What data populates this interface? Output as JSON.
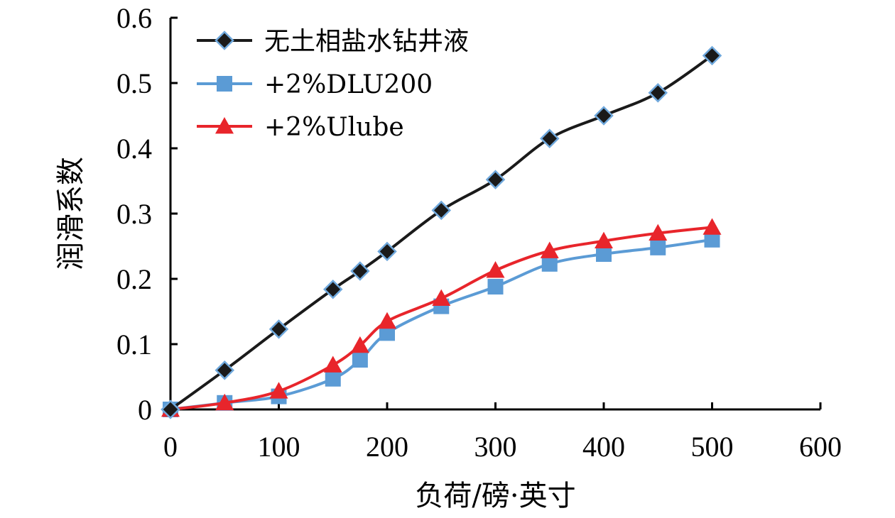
{
  "chart_data": {
    "type": "line",
    "title": "",
    "xlabel": "负荷/磅·英寸",
    "ylabel": "润滑系数",
    "xlim": [
      0,
      600
    ],
    "ylim": [
      0,
      0.6
    ],
    "x_ticks": [
      "0",
      "100",
      "200",
      "300",
      "400",
      "500",
      "600"
    ],
    "y_ticks": [
      "0",
      "0.1",
      "0.2",
      "0.3",
      "0.4",
      "0.5",
      "0.6"
    ],
    "grid": false,
    "legend_position": "top-left",
    "x": [
      0,
      50,
      100,
      150,
      175,
      200,
      250,
      300,
      350,
      400,
      450,
      500
    ],
    "series": [
      {
        "name": "无土相盐水钻井液",
        "color": "#1a1a1a",
        "marker": "diamond",
        "values": [
          0,
          0.06,
          0.123,
          0.184,
          0.212,
          0.242,
          0.305,
          0.352,
          0.415,
          0.45,
          0.485,
          0.542
        ]
      },
      {
        "name": "+2%DLU200",
        "color": "#5b9bd5",
        "marker": "square",
        "values": [
          0,
          0.01,
          0.02,
          0.047,
          0.076,
          0.117,
          0.158,
          0.188,
          0.223,
          0.238,
          0.248,
          0.26
        ]
      },
      {
        "name": "+2%Ulube",
        "color": "#e8252b",
        "marker": "triangle",
        "values": [
          0,
          0.01,
          0.028,
          0.068,
          0.098,
          0.135,
          0.17,
          0.213,
          0.243,
          0.258,
          0.27,
          0.279
        ]
      }
    ]
  }
}
